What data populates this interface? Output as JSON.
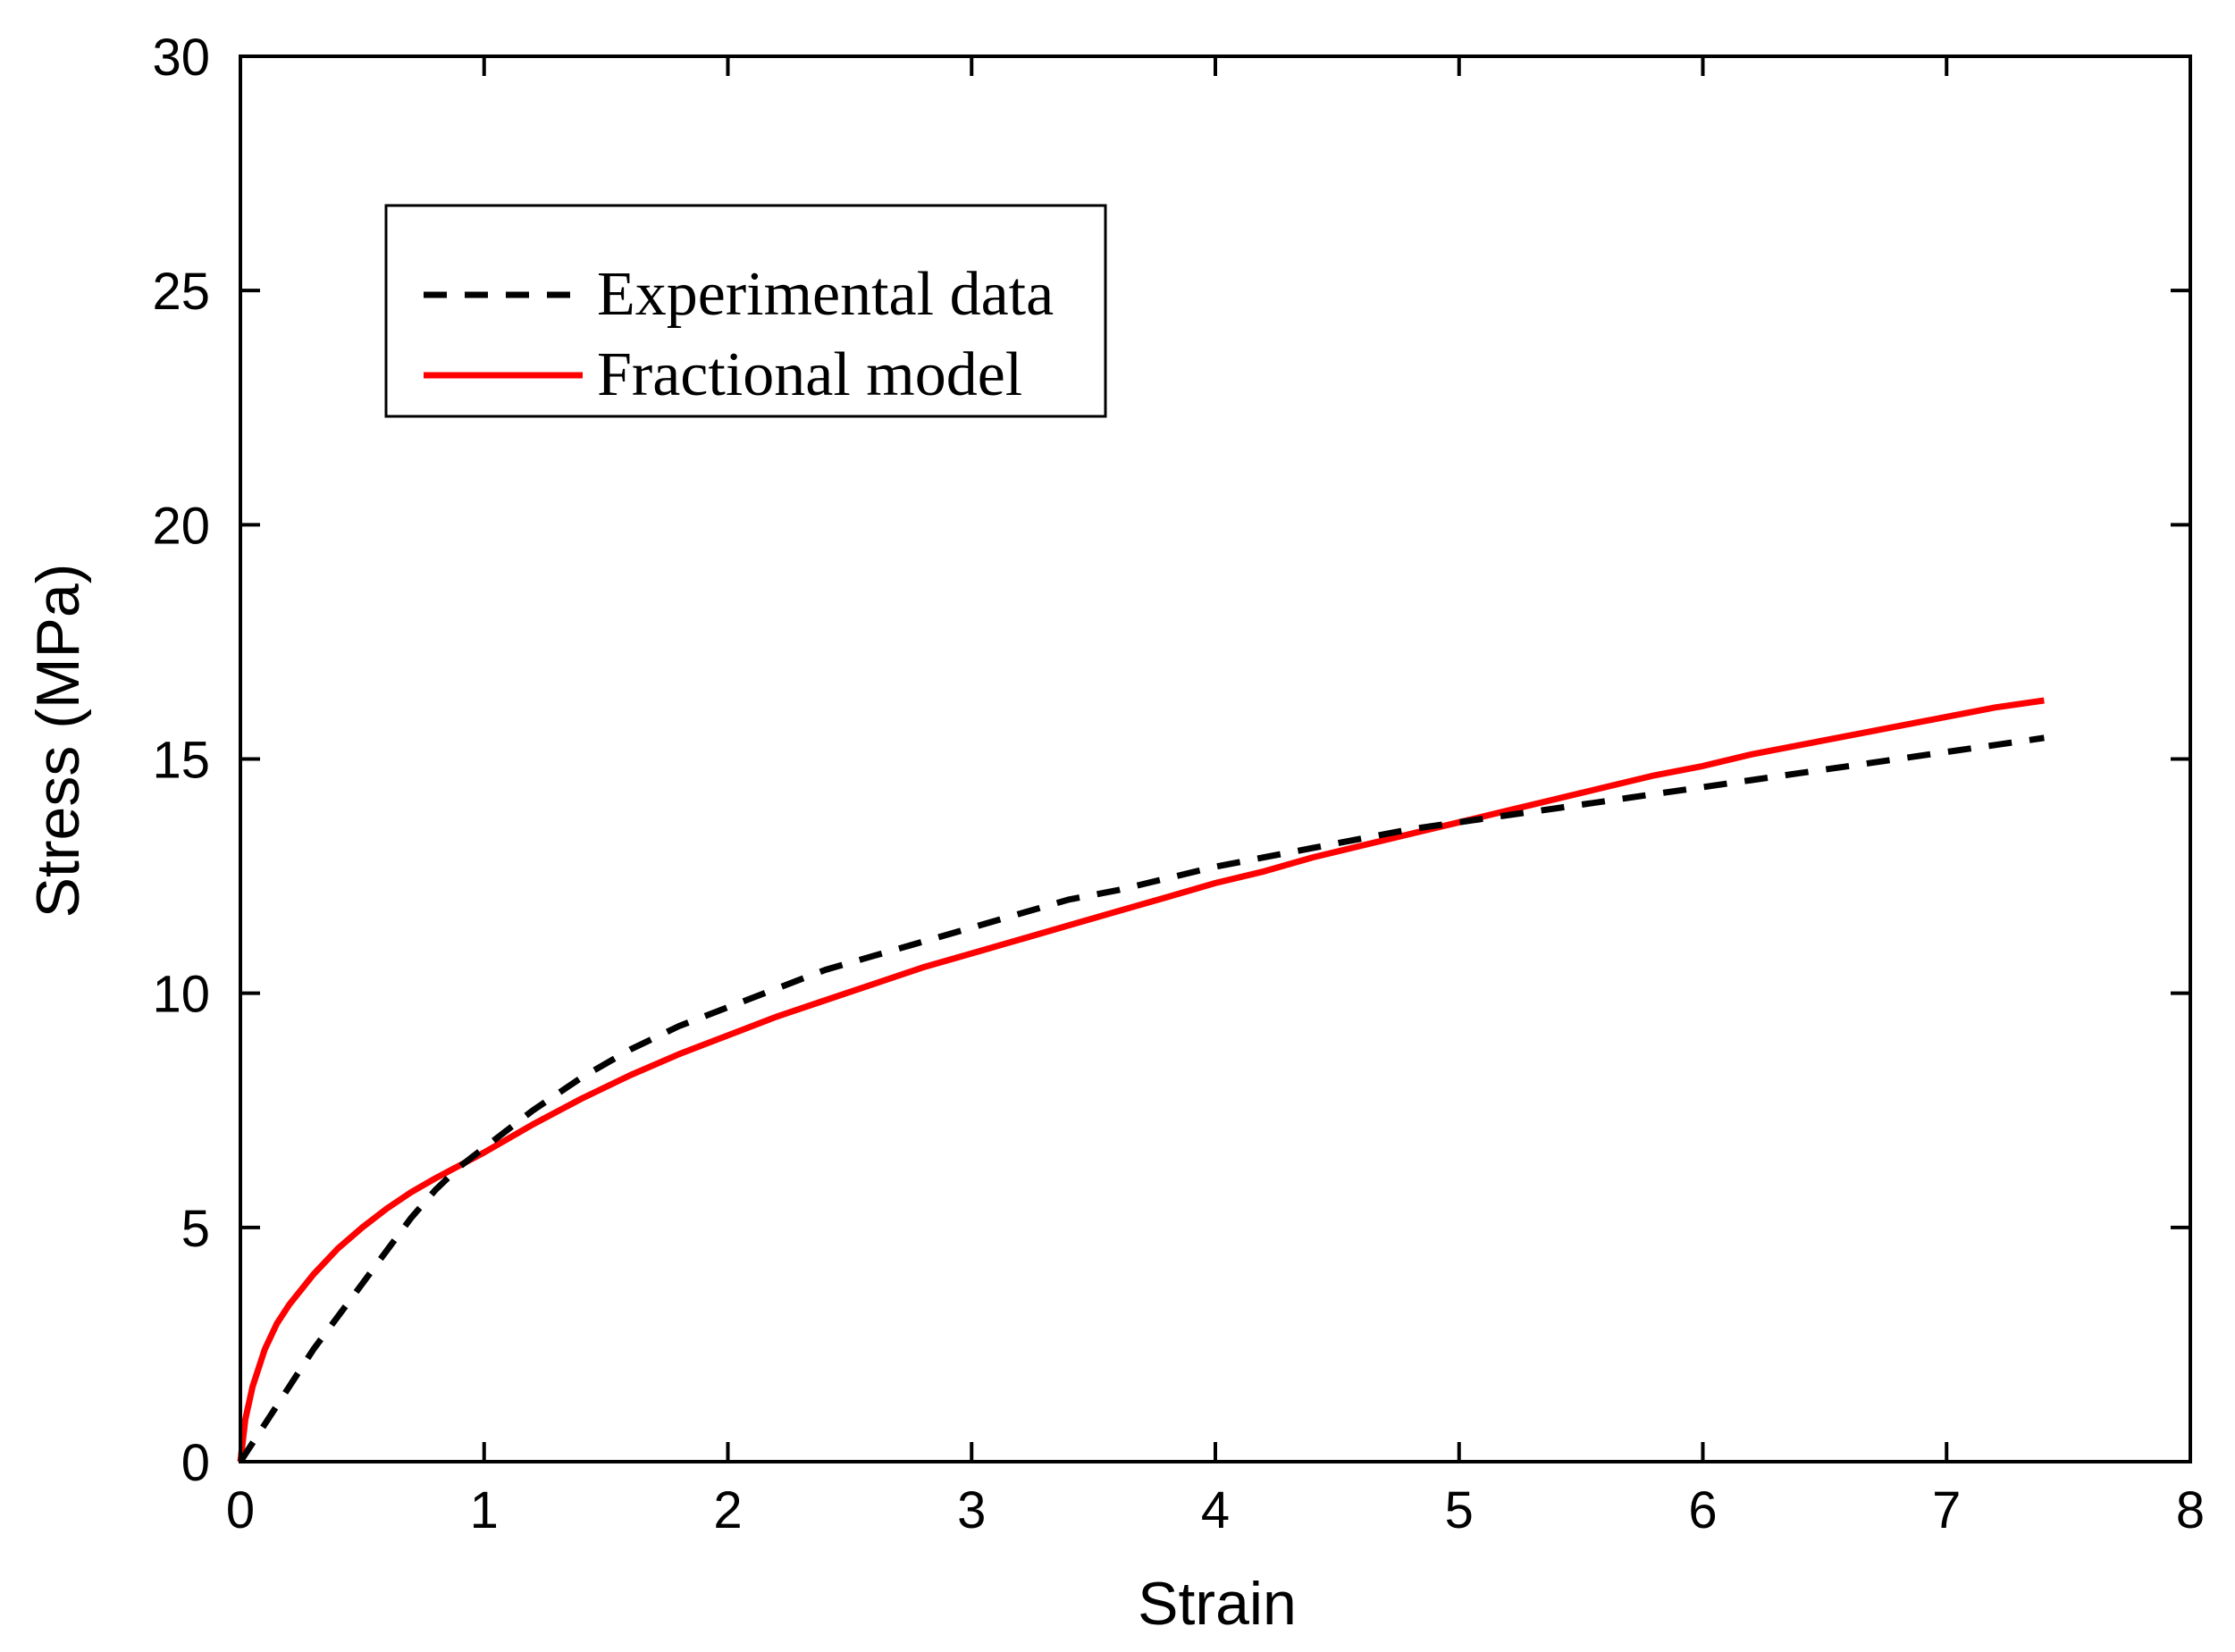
{
  "chart_data": {
    "type": "line",
    "title": "",
    "xlabel": "Strain",
    "ylabel": "Stress (MPa)",
    "xlim": [
      0,
      8
    ],
    "ylim": [
      0,
      30
    ],
    "xticks": [
      0,
      1,
      2,
      3,
      4,
      5,
      6,
      7,
      8
    ],
    "yticks": [
      0,
      5,
      10,
      15,
      20,
      25,
      30
    ],
    "xtick_labels": [
      "0",
      "1",
      "2",
      "3",
      "4",
      "5",
      "6",
      "7",
      "8"
    ],
    "ytick_labels": [
      "0",
      "5",
      "10",
      "15",
      "20",
      "25",
      "30"
    ],
    "grid": false,
    "legend_position": "top-left",
    "series": [
      {
        "name": "Experimental data",
        "style": "dashed",
        "color": "#000000",
        "x": [
          0,
          0.1,
          0.2,
          0.3,
          0.4,
          0.5,
          0.6,
          0.7,
          0.8,
          0.9,
          1.0,
          1.2,
          1.4,
          1.6,
          1.8,
          2.0,
          2.2,
          2.4,
          2.6,
          2.8,
          3.0,
          3.2,
          3.4,
          3.6,
          3.8,
          4.0,
          4.2,
          4.4,
          4.6,
          4.8,
          5.0,
          5.2,
          5.4,
          5.6,
          5.8,
          6.0,
          6.2,
          6.4,
          6.6,
          6.8,
          7.0,
          7.2,
          7.4
        ],
        "y": [
          0,
          0.8,
          1.6,
          2.4,
          3.1,
          3.8,
          4.5,
          5.2,
          5.8,
          6.3,
          6.7,
          7.5,
          8.2,
          8.8,
          9.3,
          9.7,
          10.1,
          10.5,
          10.8,
          11.1,
          11.4,
          11.7,
          12.0,
          12.2,
          12.45,
          12.7,
          12.9,
          13.1,
          13.3,
          13.5,
          13.65,
          13.8,
          13.95,
          14.1,
          14.25,
          14.4,
          14.55,
          14.7,
          14.85,
          15.0,
          15.15,
          15.3,
          15.45
        ]
      },
      {
        "name": "Fractional model",
        "style": "solid",
        "color": "#ff0000",
        "x": [
          0,
          0.02,
          0.05,
          0.1,
          0.15,
          0.2,
          0.3,
          0.4,
          0.5,
          0.6,
          0.7,
          0.8,
          1.0,
          1.2,
          1.4,
          1.6,
          1.8,
          2.0,
          2.2,
          2.4,
          2.6,
          2.8,
          3.0,
          3.2,
          3.4,
          3.6,
          3.8,
          4.0,
          4.2,
          4.4,
          4.6,
          4.8,
          5.0,
          5.2,
          5.4,
          5.6,
          5.8,
          6.0,
          6.2,
          6.4,
          6.6,
          6.8,
          7.0,
          7.2,
          7.4
        ],
        "y": [
          0,
          0.9,
          1.6,
          2.4,
          2.95,
          3.35,
          4.0,
          4.55,
          5.0,
          5.4,
          5.75,
          6.05,
          6.6,
          7.2,
          7.75,
          8.25,
          8.7,
          9.1,
          9.5,
          9.85,
          10.2,
          10.55,
          10.85,
          11.15,
          11.45,
          11.75,
          12.05,
          12.35,
          12.6,
          12.9,
          13.15,
          13.4,
          13.65,
          13.9,
          14.15,
          14.4,
          14.65,
          14.85,
          15.1,
          15.3,
          15.5,
          15.7,
          15.9,
          16.1,
          16.25
        ]
      }
    ]
  }
}
